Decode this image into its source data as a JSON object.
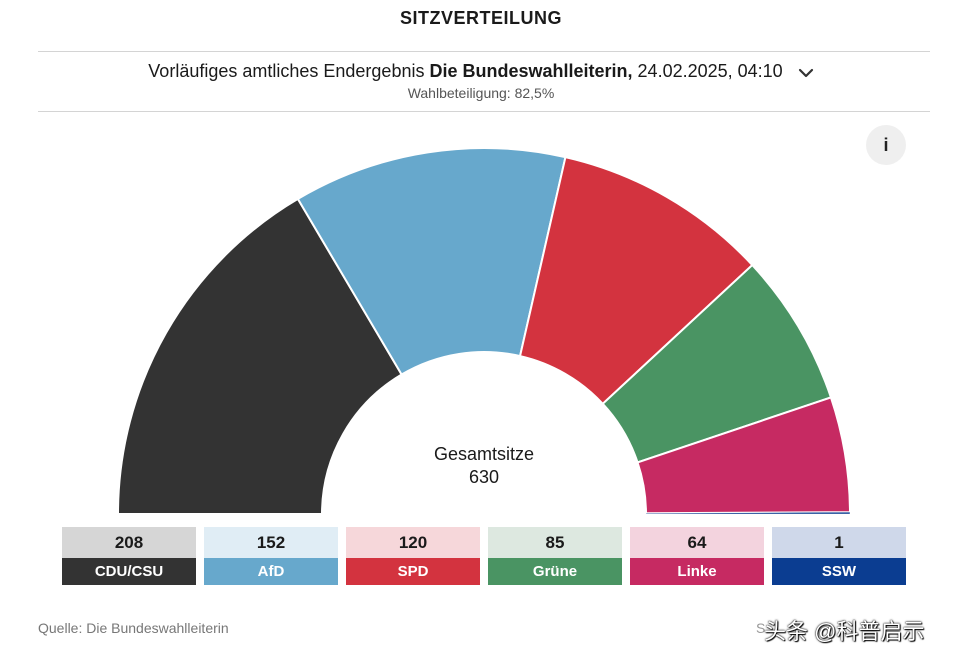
{
  "title": "SITZVERTEILUNG",
  "header": {
    "prefix": "Vorläufiges amtliches Endergebnis",
    "source_bold": "Die Bundeswahlleiterin,",
    "datetime": "24.02.2025, 04:10",
    "turnout": "Wahlbeteiligung: 82,5%"
  },
  "info_label": "i",
  "chart_data": {
    "type": "parliament-semicircle",
    "title": "SITZVERTEILUNG",
    "center_label": "Gesamtsitze",
    "total": "630",
    "categories": [
      "CDU/CSU",
      "AfD",
      "SPD",
      "Grüne",
      "Linke",
      "SSW"
    ],
    "values": [
      208,
      152,
      120,
      85,
      64,
      1
    ],
    "colors": [
      "#333333",
      "#67a8cc",
      "#d3333f",
      "#4a9463",
      "#c62a62",
      "#0b3d91"
    ],
    "light_colors": [
      "#d6d6d6",
      "#e0edf5",
      "#f6d7da",
      "#dde8e0",
      "#f3d3de",
      "#cfd8ea"
    ]
  },
  "legend": [
    {
      "seats": "208",
      "name": "CDU/CSU"
    },
    {
      "seats": "152",
      "name": "AfD"
    },
    {
      "seats": "120",
      "name": "SPD"
    },
    {
      "seats": "85",
      "name": "Grüne"
    },
    {
      "seats": "64",
      "name": "Linke"
    },
    {
      "seats": "1",
      "name": "SSW"
    }
  ],
  "footer": {
    "source": "Quelle: Die Bundeswahlleiterin",
    "status_partial": "S",
    "watermark": "头条 @科普启示"
  }
}
